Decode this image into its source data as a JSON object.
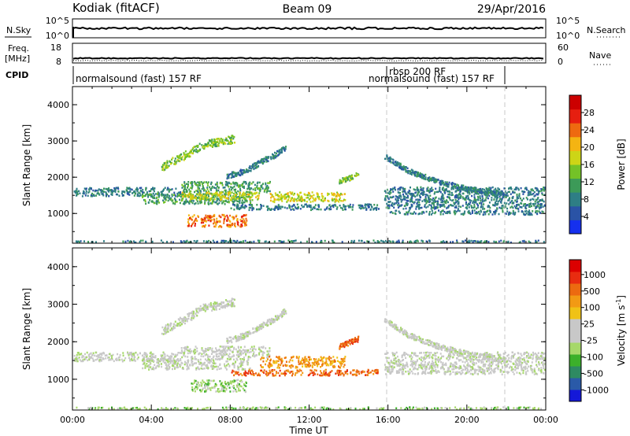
{
  "header": {
    "station": "Kodiak (fitACF)",
    "beam": "Beam 09",
    "date": "29/Apr/2016"
  },
  "top_panels": {
    "nsky_label": "N.Sky",
    "nsky_ticks": [
      "10^5",
      "10^0"
    ],
    "nsearch_label": "N.Search",
    "nsearch_ticks": [
      "10^5",
      "10^0"
    ],
    "freq_label_1": "Freq.",
    "freq_label_2": "[MHz]",
    "freq_ticks": [
      "18",
      "8"
    ],
    "nave_label": "Nave",
    "nave_ticks": [
      "60",
      "0"
    ],
    "cpid_label": "CPID",
    "cpid_segments": [
      {
        "label": "normalsound (fast) 157 RF",
        "start_hour": 0,
        "end_hour": 16
      },
      {
        "label": "rbsp 200 RF",
        "start_hour": 16,
        "end_hour": 22
      },
      {
        "label": "normalsound (fast) 157 RF",
        "start_hour": 16,
        "end_hour": 22
      }
    ]
  },
  "chart_data": [
    {
      "type": "heatmap",
      "parameter": "Power",
      "ylabel": "Slant Range [km]",
      "xlabel": "",
      "ylim": [
        180,
        4500
      ],
      "yticks": [
        "4000",
        "3000",
        "2000",
        "1000"
      ],
      "ytick_values": [
        4000,
        3000,
        2000,
        1000
      ],
      "colorbar_label": "Power [dB]",
      "colorbar_range": [
        0,
        32
      ],
      "colorbar_ticks": [
        "28",
        "24",
        "20",
        "16",
        "12",
        "8",
        "4"
      ],
      "colorbar_colors": [
        "#1530ee",
        "#2a53a6",
        "#2e7e85",
        "#3c9a58",
        "#74c227",
        "#cdd516",
        "#f4b412",
        "#ee6a10",
        "#e61f10",
        "#cc0000"
      ],
      "scatter_regions": [
        {
          "x_start": 0.0,
          "x_end": 5.5,
          "y_center": 1620,
          "y_halfwidth": 120,
          "level": 7
        },
        {
          "x_start": 3.5,
          "x_end": 9.0,
          "y_center": 1430,
          "y_halfwidth": 150,
          "level": 12
        },
        {
          "x_start": 5.5,
          "x_end": 10.0,
          "y_center": 1750,
          "y_halfwidth": 150,
          "level": 11
        },
        {
          "x_start": 5.5,
          "x_end": 9.5,
          "y_center": 1500,
          "y_halfwidth": 110,
          "level": 19
        },
        {
          "x_start": 10.0,
          "x_end": 13.8,
          "y_center": 1480,
          "y_halfwidth": 140,
          "level": 19
        },
        {
          "x_start": 5.8,
          "x_end": 8.8,
          "y_center": 820,
          "y_halfwidth": 170,
          "level": 26
        },
        {
          "x_start": 8.0,
          "x_end": 15.5,
          "y_center": 1200,
          "y_halfwidth": 80,
          "level": 7
        },
        {
          "x_start": 15.8,
          "x_end": 24.0,
          "y_center": 1450,
          "y_halfwidth": 300,
          "level": 6
        },
        {
          "x_start": 16.0,
          "x_end": 24.0,
          "y_center": 1050,
          "y_halfwidth": 60,
          "level": 6
        },
        {
          "x_start": 0.0,
          "x_end": 24.0,
          "y_center": 240,
          "y_halfwidth": 40,
          "level": 7
        }
      ],
      "bands": [
        {
          "points": [
            [
              4.5,
              2300
            ],
            [
              5.5,
              2580
            ],
            [
              6.0,
              2700
            ],
            [
              6.5,
              2900
            ],
            [
              7.5,
              3000
            ],
            [
              8.2,
              3080
            ]
          ],
          "halfwidth": 110,
          "level": 14
        },
        {
          "points": [
            [
              7.8,
              2050
            ],
            [
              8.8,
              2200
            ],
            [
              9.5,
              2430
            ],
            [
              10.3,
              2650
            ],
            [
              10.8,
              2850
            ]
          ],
          "halfwidth": 80,
          "level": 8
        },
        {
          "points": [
            [
              15.8,
              2600
            ],
            [
              17.0,
              2200
            ],
            [
              18.5,
              1900
            ],
            [
              20.0,
              1700
            ],
            [
              22.0,
              1520
            ]
          ],
          "halfwidth": 70,
          "level": 7
        },
        {
          "points": [
            [
              13.5,
              1900
            ],
            [
              14.5,
              2100
            ]
          ],
          "halfwidth": 70,
          "level": 14
        }
      ]
    },
    {
      "type": "heatmap",
      "parameter": "Velocity",
      "ylabel": "Slant Range [km]",
      "xlabel": "Time UT",
      "ylim": [
        180,
        4500
      ],
      "yticks": [
        "4000",
        "3000",
        "2000",
        "1000"
      ],
      "ytick_values": [
        4000,
        3000,
        2000,
        1000
      ],
      "xticks": [
        "00:00",
        "04:00",
        "08:00",
        "12:00",
        "16:00",
        "20:00",
        "00:00"
      ],
      "xtick_hours": [
        0,
        4,
        8,
        12,
        16,
        20,
        24
      ],
      "colorbar_label": "Velocity [m s^-1]",
      "colorbar_ticks": [
        "1000",
        "500",
        "100",
        "25",
        "-25",
        "-100",
        "-500",
        "-1000"
      ],
      "colorbar_colors": [
        "#1418d8",
        "#2a5aa8",
        "#2e8a62",
        "#3cb02a",
        "#a6d86a",
        "#c8c8c8",
        "#c8c8c8",
        "#f0c216",
        "#f29a14",
        "#ec6a10",
        "#e82c10",
        "#dc0000"
      ],
      "scatter_regions": [
        {
          "x_start": 0.0,
          "x_end": 5.5,
          "y_center": 1620,
          "y_halfwidth": 120,
          "level": 5
        },
        {
          "x_start": 3.5,
          "x_end": 9.0,
          "y_center": 1430,
          "y_halfwidth": 150,
          "level": 5
        },
        {
          "x_start": 5.5,
          "x_end": 10.0,
          "y_center": 1750,
          "y_halfwidth": 150,
          "level": 5
        },
        {
          "x_start": 9.5,
          "x_end": 13.8,
          "y_center": 1480,
          "y_halfwidth": 150,
          "level": 8
        },
        {
          "x_start": 6.0,
          "x_end": 8.8,
          "y_center": 850,
          "y_halfwidth": 160,
          "level": 4
        },
        {
          "x_start": 8.0,
          "x_end": 15.5,
          "y_center": 1200,
          "y_halfwidth": 80,
          "level": 9
        },
        {
          "x_start": 15.8,
          "x_end": 24.0,
          "y_center": 1450,
          "y_halfwidth": 300,
          "level": 5
        },
        {
          "x_start": 0.0,
          "x_end": 24.0,
          "y_center": 240,
          "y_halfwidth": 40,
          "level": 4
        }
      ],
      "bands": [
        {
          "points": [
            [
              4.5,
              2300
            ],
            [
              5.5,
              2580
            ],
            [
              6.0,
              2700
            ],
            [
              6.5,
              2900
            ],
            [
              7.5,
              3000
            ],
            [
              8.2,
              3080
            ]
          ],
          "halfwidth": 110,
          "level": 5
        },
        {
          "points": [
            [
              7.8,
              2050
            ],
            [
              8.8,
              2200
            ],
            [
              9.5,
              2430
            ],
            [
              10.3,
              2650
            ],
            [
              10.8,
              2850
            ]
          ],
          "halfwidth": 80,
          "level": 5
        },
        {
          "points": [
            [
              15.8,
              2600
            ],
            [
              17.0,
              2200
            ],
            [
              18.5,
              1900
            ],
            [
              20.0,
              1700
            ],
            [
              22.0,
              1520
            ]
          ],
          "halfwidth": 70,
          "level": 5
        },
        {
          "points": [
            [
              13.5,
              1900
            ],
            [
              14.5,
              2100
            ]
          ],
          "halfwidth": 70,
          "level": 9
        }
      ]
    }
  ]
}
